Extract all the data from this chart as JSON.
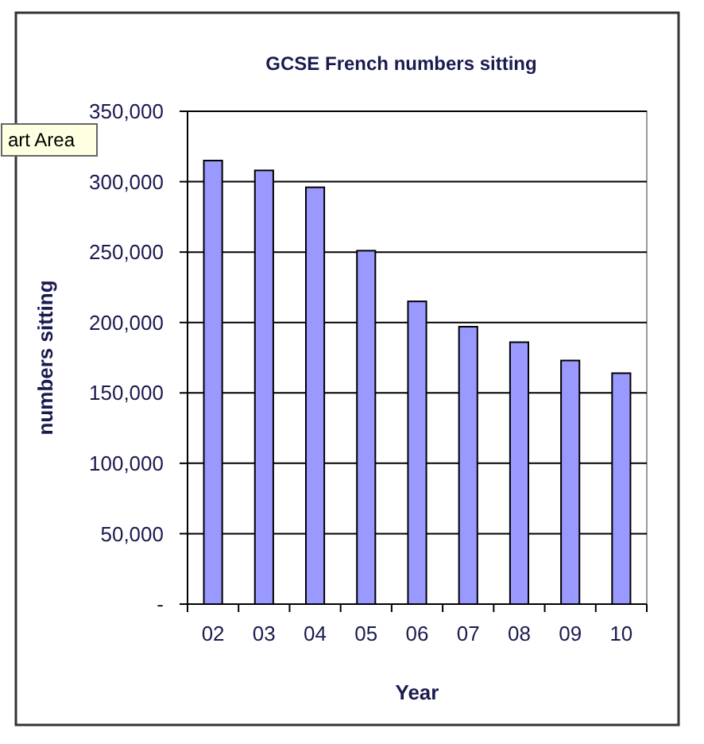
{
  "chart_data": {
    "type": "bar",
    "title": "GCSE French numbers sitting",
    "xlabel": "Year",
    "ylabel": "numbers sitting",
    "categories": [
      "02",
      "03",
      "04",
      "05",
      "06",
      "07",
      "08",
      "09",
      "10"
    ],
    "values": [
      315000,
      308000,
      296000,
      251000,
      215000,
      197000,
      186000,
      173000,
      164000
    ],
    "color": "#9999ff",
    "ylim": [
      0,
      350000
    ],
    "yticks": [
      {
        "value": 0,
        "label": "-"
      },
      {
        "value": 50000,
        "label": "50,000"
      },
      {
        "value": 100000,
        "label": "100,000"
      },
      {
        "value": 150000,
        "label": "150,000"
      },
      {
        "value": 200000,
        "label": "200,000"
      },
      {
        "value": 250000,
        "label": "250,000"
      },
      {
        "value": 300000,
        "label": "300,000"
      },
      {
        "value": 350000,
        "label": "350,000"
      }
    ],
    "grid": "y",
    "annotations": [
      "art Area"
    ]
  }
}
